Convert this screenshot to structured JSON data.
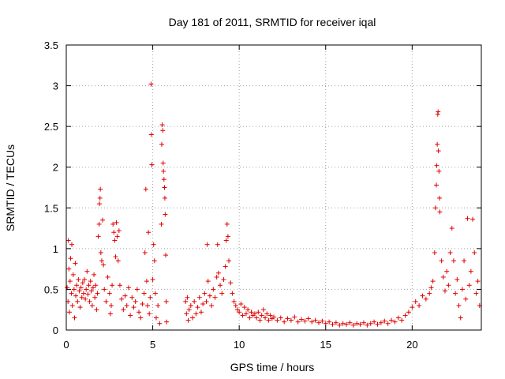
{
  "chart_data": {
    "type": "scatter",
    "title": "Day 181 of 2011, SRMTID for receiver iqal",
    "xlabel": "GPS time / hours",
    "ylabel": "SRMTID / TECUs",
    "xlim": [
      0,
      24
    ],
    "ylim": [
      0,
      3.5
    ],
    "xticks": [
      0,
      5,
      10,
      15,
      20
    ],
    "xtick_labels": [
      "0",
      "5",
      "10",
      "15",
      "20"
    ],
    "yticks": [
      0,
      0.5,
      1,
      1.5,
      2,
      2.5,
      3,
      3.5
    ],
    "ytick_labels": [
      "0",
      "0.5",
      "1",
      "1.5",
      "2",
      "2.5",
      "3",
      "3.5"
    ],
    "grid": true,
    "marker": "+",
    "color": "#e00000",
    "series": [
      {
        "name": "SRMTID",
        "points": [
          [
            0.05,
            0.52
          ],
          [
            0.1,
            0.35
          ],
          [
            0.12,
            1.1
          ],
          [
            0.15,
            0.75
          ],
          [
            0.18,
            0.22
          ],
          [
            0.22,
            0.6
          ],
          [
            0.25,
            0.88
          ],
          [
            0.3,
            0.45
          ],
          [
            0.32,
            1.05
          ],
          [
            0.35,
            0.3
          ],
          [
            0.4,
            0.68
          ],
          [
            0.45,
            0.5
          ],
          [
            0.48,
            0.15
          ],
          [
            0.52,
            0.82
          ],
          [
            0.55,
            0.42
          ],
          [
            0.6,
            0.55
          ],
          [
            0.65,
            0.35
          ],
          [
            0.7,
            0.62
          ],
          [
            0.75,
            0.48
          ],
          [
            0.8,
            0.28
          ],
          [
            0.85,
            0.52
          ],
          [
            0.9,
            0.4
          ],
          [
            0.95,
            0.58
          ],
          [
            1.0,
            0.45
          ],
          [
            1.05,
            0.62
          ],
          [
            1.1,
            0.38
          ],
          [
            1.15,
            0.5
          ],
          [
            1.2,
            0.72
          ],
          [
            1.25,
            0.44
          ],
          [
            1.3,
            0.55
          ],
          [
            1.35,
            0.35
          ],
          [
            1.4,
            0.6
          ],
          [
            1.45,
            0.48
          ],
          [
            1.5,
            0.3
          ],
          [
            1.55,
            0.52
          ],
          [
            1.6,
            0.68
          ],
          [
            1.65,
            0.4
          ],
          [
            1.7,
            0.55
          ],
          [
            1.75,
            0.25
          ],
          [
            1.8,
            0.45
          ],
          [
            1.85,
            1.15
          ],
          [
            1.9,
            1.3
          ],
          [
            1.92,
            1.55
          ],
          [
            1.95,
            1.62
          ],
          [
            1.97,
            1.73
          ],
          [
            2.0,
            0.95
          ],
          [
            2.05,
            0.85
          ],
          [
            2.1,
            1.35
          ],
          [
            2.15,
            0.8
          ],
          [
            2.2,
            0.5
          ],
          [
            2.3,
            0.35
          ],
          [
            2.4,
            0.65
          ],
          [
            2.5,
            0.45
          ],
          [
            2.55,
            0.2
          ],
          [
            2.6,
            0.3
          ],
          [
            2.65,
            0.55
          ],
          [
            2.7,
            1.3
          ],
          [
            2.75,
            1.2
          ],
          [
            2.8,
            1.1
          ],
          [
            2.85,
            0.9
          ],
          [
            2.9,
            1.32
          ],
          [
            2.95,
            1.15
          ],
          [
            3.0,
            0.85
          ],
          [
            3.05,
            1.22
          ],
          [
            3.1,
            0.55
          ],
          [
            3.2,
            0.38
          ],
          [
            3.3,
            0.25
          ],
          [
            3.4,
            0.42
          ],
          [
            3.5,
            0.3
          ],
          [
            3.6,
            0.52
          ],
          [
            3.7,
            0.18
          ],
          [
            3.8,
            0.4
          ],
          [
            3.9,
            0.28
          ],
          [
            4.0,
            0.35
          ],
          [
            4.1,
            0.5
          ],
          [
            4.2,
            0.22
          ],
          [
            4.3,
            0.15
          ],
          [
            4.4,
            0.32
          ],
          [
            4.5,
            0.45
          ],
          [
            4.55,
            0.95
          ],
          [
            4.6,
            1.73
          ],
          [
            4.65,
            0.6
          ],
          [
            4.7,
            0.3
          ],
          [
            4.75,
            1.2
          ],
          [
            4.8,
            0.2
          ],
          [
            4.85,
            0.4
          ],
          [
            4.9,
            3.02
          ],
          [
            4.92,
            2.4
          ],
          [
            4.95,
            2.03
          ],
          [
            5.0,
            0.62
          ],
          [
            5.05,
            1.05
          ],
          [
            5.1,
            0.85
          ],
          [
            5.15,
            0.45
          ],
          [
            5.2,
            0.15
          ],
          [
            5.3,
            0.3
          ],
          [
            5.4,
            0.08
          ],
          [
            5.5,
            1.3
          ],
          [
            5.52,
            2.28
          ],
          [
            5.55,
            2.52
          ],
          [
            5.58,
            2.45
          ],
          [
            5.6,
            2.05
          ],
          [
            5.62,
            1.95
          ],
          [
            5.65,
            1.85
          ],
          [
            5.68,
            1.75
          ],
          [
            5.7,
            1.62
          ],
          [
            5.72,
            1.42
          ],
          [
            5.75,
            0.92
          ],
          [
            5.78,
            0.35
          ],
          [
            5.8,
            0.1
          ],
          [
            6.9,
            0.35
          ],
          [
            6.95,
            0.2
          ],
          [
            7.0,
            0.4
          ],
          [
            7.05,
            0.12
          ],
          [
            7.1,
            0.25
          ],
          [
            7.2,
            0.3
          ],
          [
            7.3,
            0.15
          ],
          [
            7.4,
            0.35
          ],
          [
            7.5,
            0.2
          ],
          [
            7.6,
            0.28
          ],
          [
            7.7,
            0.4
          ],
          [
            7.8,
            0.22
          ],
          [
            7.9,
            0.32
          ],
          [
            8.0,
            0.45
          ],
          [
            8.1,
            0.35
          ],
          [
            8.15,
            1.05
          ],
          [
            8.2,
            0.6
          ],
          [
            8.3,
            0.42
          ],
          [
            8.4,
            0.3
          ],
          [
            8.5,
            0.5
          ],
          [
            8.6,
            0.4
          ],
          [
            8.7,
            0.65
          ],
          [
            8.75,
            1.05
          ],
          [
            8.8,
            0.7
          ],
          [
            8.9,
            0.55
          ],
          [
            9.0,
            0.45
          ],
          [
            9.1,
            0.62
          ],
          [
            9.2,
            0.78
          ],
          [
            9.25,
            1.1
          ],
          [
            9.3,
            1.3
          ],
          [
            9.35,
            1.15
          ],
          [
            9.4,
            0.85
          ],
          [
            9.5,
            0.58
          ],
          [
            9.6,
            0.45
          ],
          [
            9.7,
            0.35
          ],
          [
            9.8,
            0.3
          ],
          [
            9.9,
            0.25
          ],
          [
            10.0,
            0.22
          ],
          [
            10.1,
            0.32
          ],
          [
            10.2,
            0.18
          ],
          [
            10.3,
            0.28
          ],
          [
            10.4,
            0.2
          ],
          [
            10.5,
            0.25
          ],
          [
            10.6,
            0.15
          ],
          [
            10.7,
            0.22
          ],
          [
            10.8,
            0.18
          ],
          [
            10.9,
            0.2
          ],
          [
            11.0,
            0.15
          ],
          [
            11.1,
            0.22
          ],
          [
            11.2,
            0.12
          ],
          [
            11.3,
            0.18
          ],
          [
            11.4,
            0.25
          ],
          [
            11.5,
            0.15
          ],
          [
            11.6,
            0.2
          ],
          [
            11.7,
            0.12
          ],
          [
            11.8,
            0.18
          ],
          [
            11.9,
            0.14
          ],
          [
            12.0,
            0.16
          ],
          [
            12.2,
            0.12
          ],
          [
            12.4,
            0.15
          ],
          [
            12.6,
            0.1
          ],
          [
            12.8,
            0.14
          ],
          [
            13.0,
            0.12
          ],
          [
            13.2,
            0.16
          ],
          [
            13.4,
            0.1
          ],
          [
            13.6,
            0.13
          ],
          [
            13.8,
            0.11
          ],
          [
            14.0,
            0.14
          ],
          [
            14.2,
            0.1
          ],
          [
            14.4,
            0.12
          ],
          [
            14.6,
            0.09
          ],
          [
            14.8,
            0.11
          ],
          [
            15.0,
            0.08
          ],
          [
            15.2,
            0.1
          ],
          [
            15.4,
            0.07
          ],
          [
            15.6,
            0.09
          ],
          [
            15.8,
            0.06
          ],
          [
            16.0,
            0.08
          ],
          [
            16.2,
            0.07
          ],
          [
            16.4,
            0.09
          ],
          [
            16.6,
            0.06
          ],
          [
            16.8,
            0.08
          ],
          [
            17.0,
            0.07
          ],
          [
            17.2,
            0.09
          ],
          [
            17.4,
            0.06
          ],
          [
            17.6,
            0.08
          ],
          [
            17.8,
            0.1
          ],
          [
            18.0,
            0.07
          ],
          [
            18.2,
            0.09
          ],
          [
            18.4,
            0.11
          ],
          [
            18.6,
            0.08
          ],
          [
            18.8,
            0.12
          ],
          [
            19.0,
            0.1
          ],
          [
            19.2,
            0.15
          ],
          [
            19.4,
            0.12
          ],
          [
            19.6,
            0.18
          ],
          [
            19.8,
            0.22
          ],
          [
            20.0,
            0.28
          ],
          [
            20.2,
            0.35
          ],
          [
            20.4,
            0.3
          ],
          [
            20.6,
            0.42
          ],
          [
            20.8,
            0.38
          ],
          [
            21.0,
            0.45
          ],
          [
            21.1,
            0.52
          ],
          [
            21.2,
            0.6
          ],
          [
            21.3,
            0.95
          ],
          [
            21.35,
            1.5
          ],
          [
            21.4,
            1.78
          ],
          [
            21.42,
            2.02
          ],
          [
            21.45,
            2.28
          ],
          [
            21.48,
            2.65
          ],
          [
            21.5,
            2.68
          ],
          [
            21.52,
            2.2
          ],
          [
            21.55,
            1.95
          ],
          [
            21.58,
            1.62
          ],
          [
            21.6,
            1.45
          ],
          [
            21.7,
            0.85
          ],
          [
            21.8,
            0.65
          ],
          [
            21.9,
            0.48
          ],
          [
            22.0,
            0.72
          ],
          [
            22.1,
            0.55
          ],
          [
            22.2,
            0.95
          ],
          [
            22.3,
            1.25
          ],
          [
            22.4,
            0.85
          ],
          [
            22.5,
            0.45
          ],
          [
            22.6,
            0.62
          ],
          [
            22.7,
            0.3
          ],
          [
            22.8,
            0.15
          ],
          [
            22.9,
            0.5
          ],
          [
            23.0,
            0.85
          ],
          [
            23.1,
            0.38
          ],
          [
            23.2,
            1.37
          ],
          [
            23.3,
            0.55
          ],
          [
            23.4,
            0.72
          ],
          [
            23.5,
            1.36
          ],
          [
            23.6,
            0.95
          ],
          [
            23.7,
            0.45
          ],
          [
            23.8,
            0.6
          ],
          [
            23.9,
            0.3
          ]
        ]
      }
    ]
  }
}
